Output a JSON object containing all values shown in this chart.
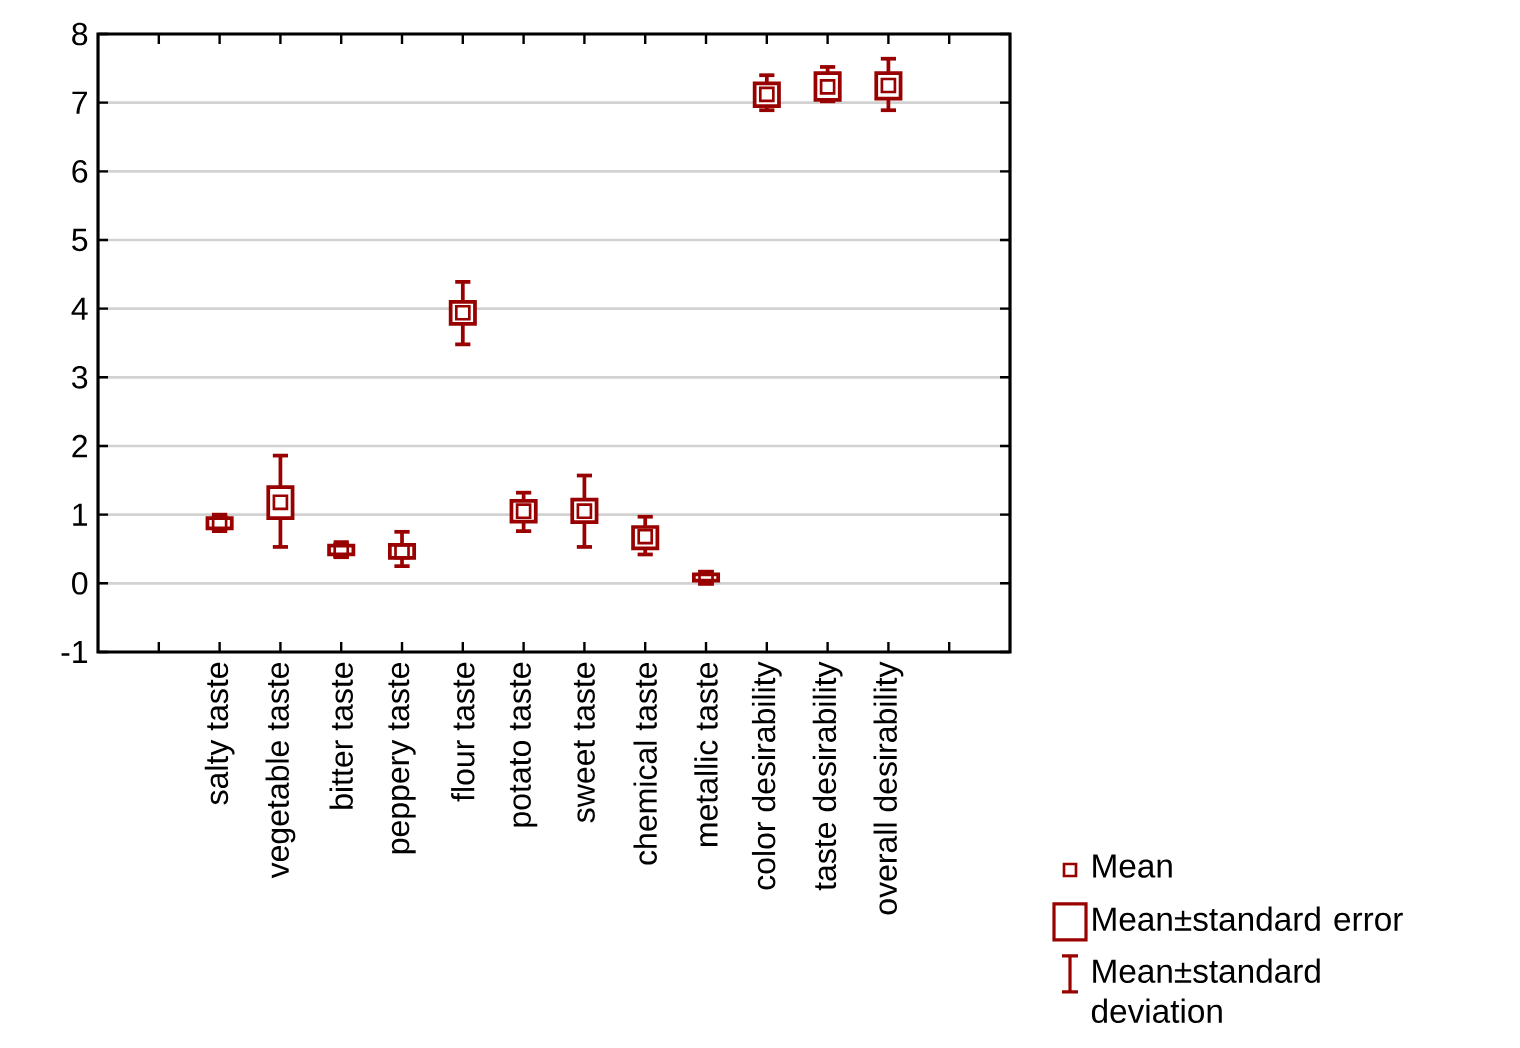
{
  "chart_data": {
    "type": "box",
    "color": "#990000",
    "marker": "square",
    "categories": [
      "salty taste",
      "vegetable taste",
      "bitter taste",
      "peppery taste",
      "flour taste",
      "potato taste",
      "sweet taste",
      "chemical taste",
      "metallic taste",
      "color desirability",
      "taste desirability",
      "overall  desirability"
    ],
    "boxes": [
      {
        "low": 0.76,
        "q1": 0.8,
        "median": 0.88,
        "q3": 0.95,
        "high": 1.0
      },
      {
        "low": 0.53,
        "q1": 0.95,
        "median": 1.18,
        "q3": 1.4,
        "high": 1.86
      },
      {
        "low": 0.38,
        "q1": 0.42,
        "median": 0.48,
        "q3": 0.55,
        "high": 0.6
      },
      {
        "low": 0.25,
        "q1": 0.37,
        "median": 0.46,
        "q3": 0.56,
        "high": 0.75
      },
      {
        "low": 3.48,
        "q1": 3.78,
        "median": 3.94,
        "q3": 4.1,
        "high": 4.39
      },
      {
        "low": 0.76,
        "q1": 0.9,
        "median": 1.05,
        "q3": 1.2,
        "high": 1.32
      },
      {
        "low": 0.53,
        "q1": 0.89,
        "median": 1.05,
        "q3": 1.22,
        "high": 1.57
      },
      {
        "low": 0.42,
        "q1": 0.51,
        "median": 0.68,
        "q3": 0.82,
        "high": 0.97
      },
      {
        "low": 0.0,
        "q1": 0.04,
        "median": 0.08,
        "q3": 0.13,
        "high": 0.17
      },
      {
        "low": 6.89,
        "q1": 6.95,
        "median": 7.12,
        "q3": 7.28,
        "high": 7.4
      },
      {
        "low": 7.02,
        "q1": 7.04,
        "median": 7.23,
        "q3": 7.43,
        "high": 7.52
      },
      {
        "low": 6.89,
        "q1": 7.06,
        "median": 7.25,
        "q3": 7.43,
        "high": 7.64
      }
    ],
    "annotations": [
      "Mean",
      "Mean±standard error",
      "Mean±standard deviation"
    ],
    "ylim": [
      -1,
      8
    ],
    "yticks": [
      -1,
      0,
      1,
      2,
      3,
      4,
      5,
      6,
      7,
      8
    ],
    "grid": "y"
  }
}
